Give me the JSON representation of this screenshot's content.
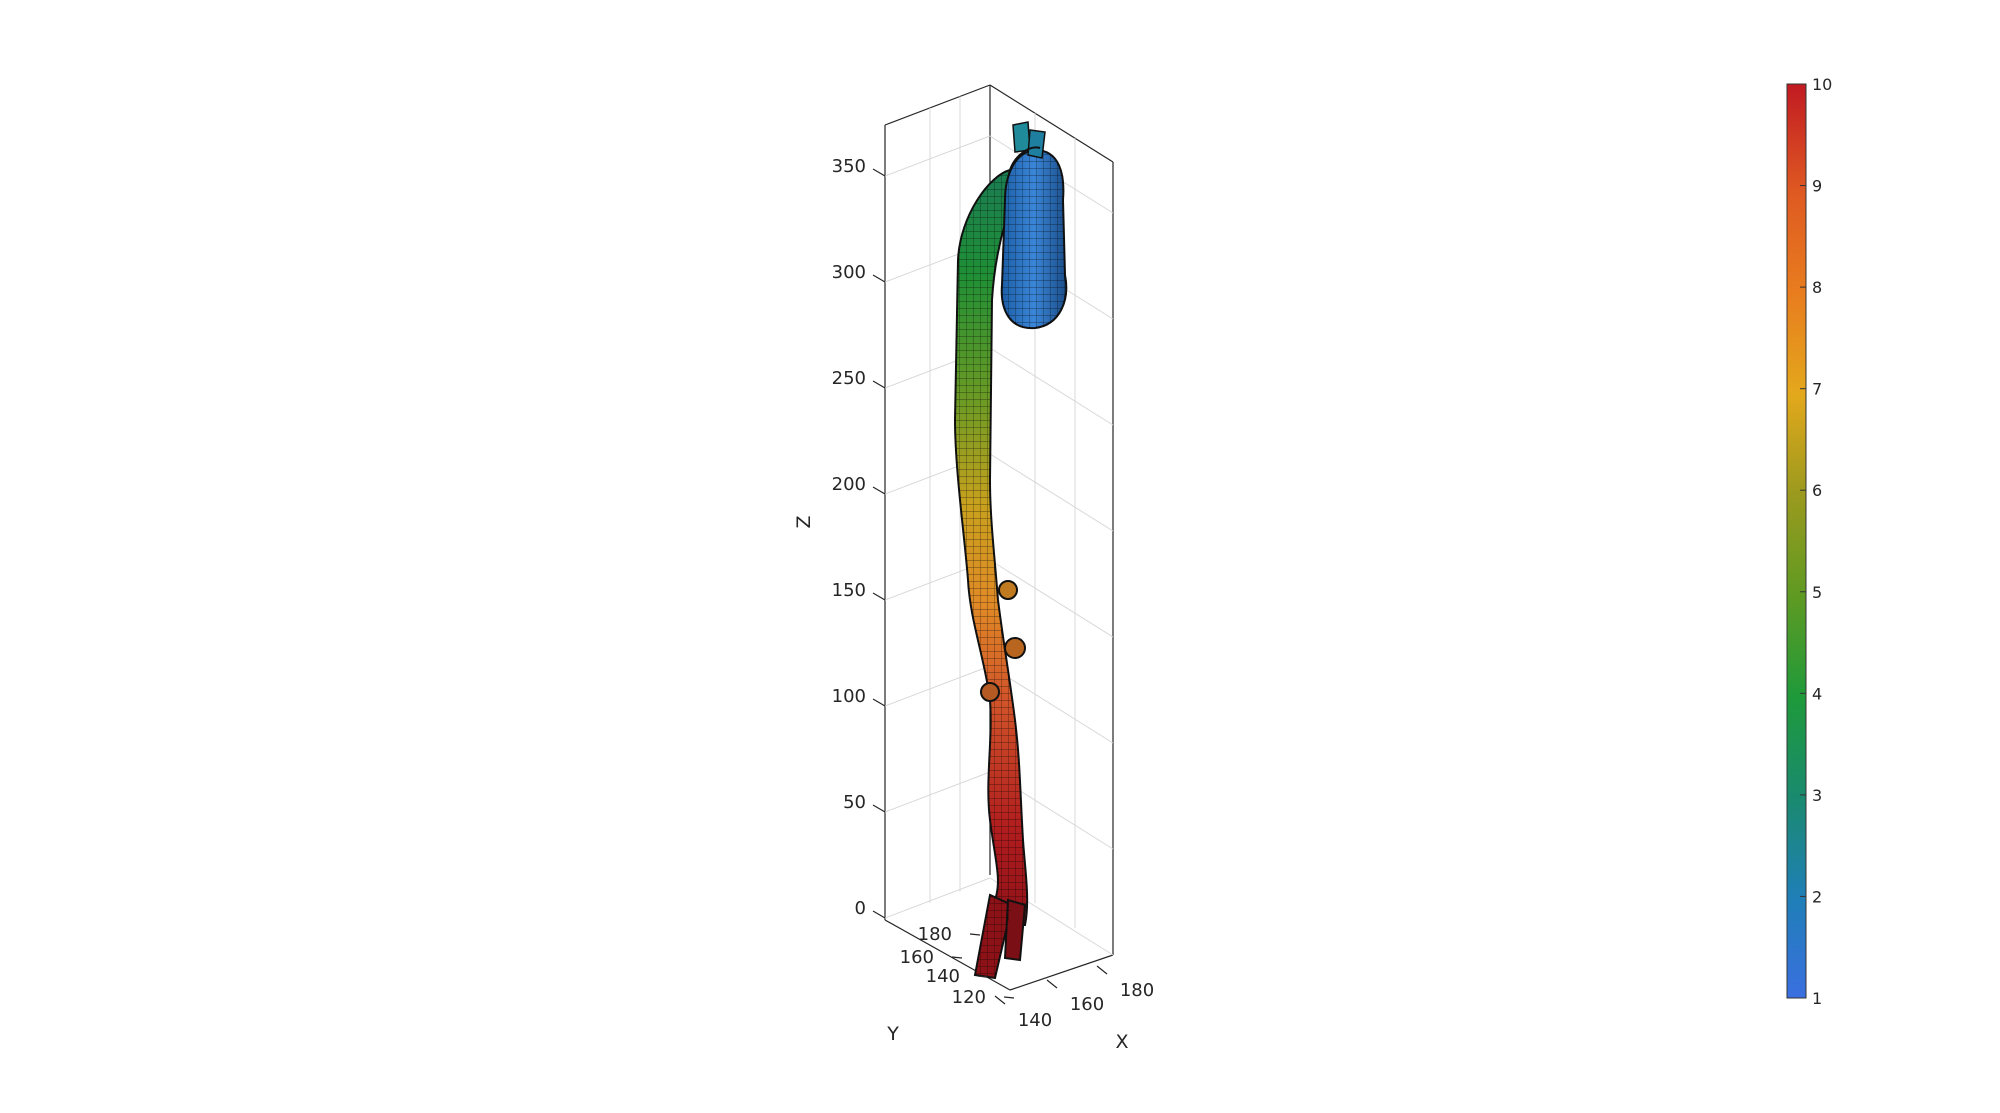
{
  "chart_data": {
    "type": "surface3d",
    "title": "",
    "axes": {
      "x": {
        "label": "X",
        "ticks": [
          140,
          160,
          180
        ]
      },
      "y": {
        "label": "Y",
        "ticks": [
          120,
          140,
          160,
          180
        ]
      },
      "z": {
        "label": "Z",
        "ticks": [
          0,
          50,
          100,
          150,
          200,
          250,
          300,
          350
        ]
      }
    },
    "grid": true,
    "colorbar": {
      "ticks": [
        1,
        2,
        3,
        4,
        5,
        6,
        7,
        8,
        9,
        10
      ],
      "range": [
        1,
        10
      ],
      "colormap": [
        "#3a6fe0",
        "#1f7fb7",
        "#1a8a6e",
        "#1f9a3a",
        "#5f9a22",
        "#9a9a1e",
        "#e3a81c",
        "#e87d1e",
        "#df5a22",
        "#c11a22"
      ]
    },
    "surface": {
      "description_value_range": [
        1,
        10
      ],
      "z_extent": [
        -70,
        370
      ]
    }
  }
}
